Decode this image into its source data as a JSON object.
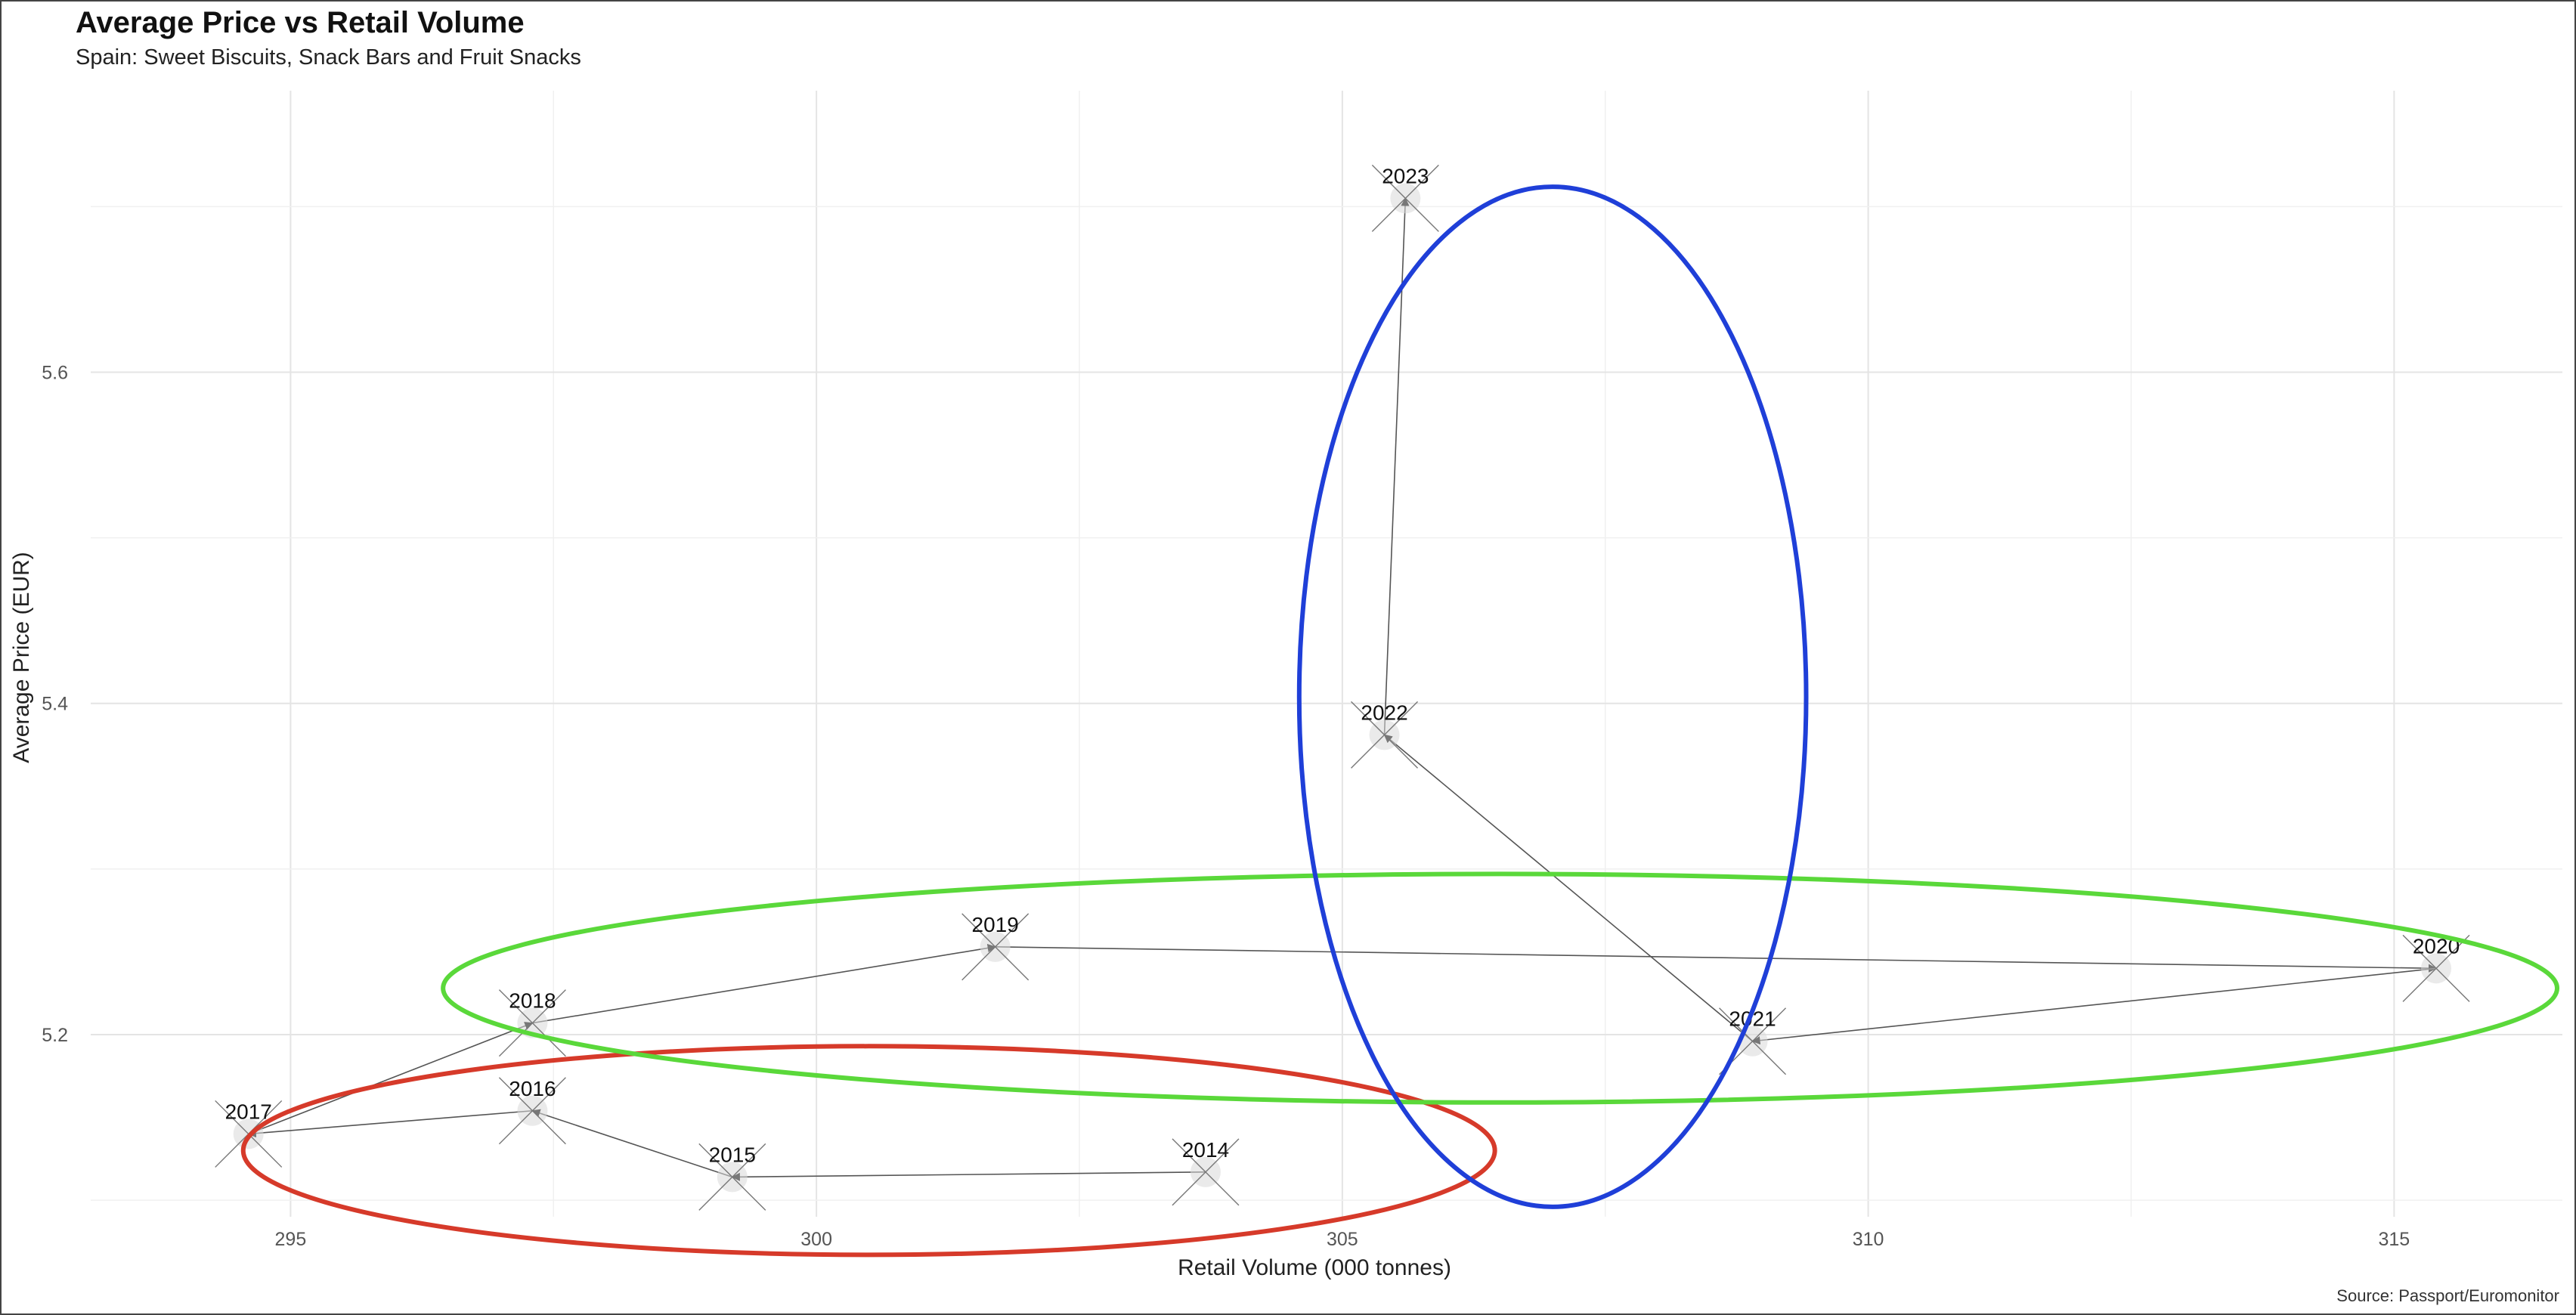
{
  "chart_data": {
    "type": "scatter",
    "title": "Average Price vs Retail Volume",
    "subtitle": "Spain: Sweet Biscuits, Snack Bars and Fruit Snacks",
    "xlabel": "Retail Volume (000 tonnes)",
    "ylabel": "Average Price (EUR)",
    "source": "Source: Passport/Euromonitor",
    "xlim": [
      293.1,
      316.6
    ],
    "ylim": [
      5.09,
      5.77
    ],
    "xticks": [
      295,
      300,
      305,
      310,
      315
    ],
    "xtick_labels": [
      "295",
      "300",
      "305",
      "310",
      "315"
    ],
    "yticks": [
      5.2,
      5.4,
      5.6
    ],
    "ytick_labels": [
      "5.2",
      "5.4",
      "5.6"
    ],
    "grid": true,
    "marker": "x",
    "connected_in_year_order": true,
    "points": [
      {
        "label": "2014",
        "x": 303.7,
        "y": 5.117
      },
      {
        "label": "2015",
        "x": 299.2,
        "y": 5.114
      },
      {
        "label": "2016",
        "x": 297.3,
        "y": 5.154
      },
      {
        "label": "2017",
        "x": 294.6,
        "y": 5.14
      },
      {
        "label": "2018",
        "x": 297.3,
        "y": 5.207
      },
      {
        "label": "2019",
        "x": 301.7,
        "y": 5.253
      },
      {
        "label": "2020",
        "x": 315.4,
        "y": 5.24
      },
      {
        "label": "2021",
        "x": 308.9,
        "y": 5.196
      },
      {
        "label": "2022",
        "x": 305.4,
        "y": 5.381
      },
      {
        "label": "2023",
        "x": 305.6,
        "y": 5.705
      }
    ],
    "highlight_ellipses": [
      {
        "color": "#d63a2a",
        "center": [
          300.5,
          5.13
        ],
        "radii": [
          5.95,
          0.063
        ],
        "rotation_deg": 0
      },
      {
        "color": "#5ad83a",
        "center": [
          306.5,
          5.228
        ],
        "radii": [
          10.05,
          0.069
        ],
        "rotation_deg": 0
      },
      {
        "color": "#1f3fd8",
        "center": [
          307.0,
          5.404
        ],
        "radii": [
          2.41,
          0.308
        ],
        "rotation_deg": 0
      }
    ]
  }
}
